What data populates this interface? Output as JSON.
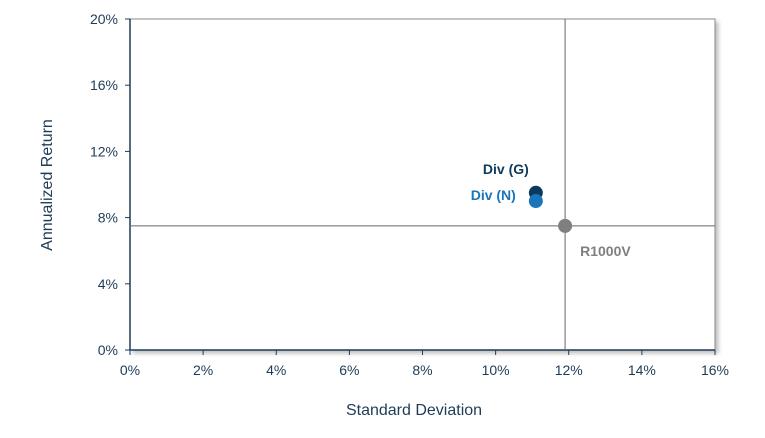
{
  "chart_data": {
    "type": "scatter",
    "xlabel": "Standard Deviation",
    "ylabel": "Annualized Return",
    "xlim": [
      0,
      16
    ],
    "ylim": [
      0,
      20
    ],
    "x_ticks": [
      "0%",
      "2%",
      "4%",
      "6%",
      "8%",
      "10%",
      "12%",
      "14%",
      "16%"
    ],
    "y_ticks": [
      "0%",
      "4%",
      "8%",
      "12%",
      "16%",
      "20%"
    ],
    "grid": false,
    "series": [
      {
        "name": "Div (G)",
        "x": 11.1,
        "y": 9.5,
        "color": "#0d3a5c"
      },
      {
        "name": "Div (N)",
        "x": 11.1,
        "y": 9.0,
        "color": "#1b75bb"
      },
      {
        "name": "R1000V",
        "x": 11.9,
        "y": 7.5,
        "color": "#7f7f7f",
        "benchmark": true
      }
    ]
  },
  "colors": {
    "axis": "#1f3b57",
    "frame": "#666666",
    "crosshair": "#666666"
  }
}
